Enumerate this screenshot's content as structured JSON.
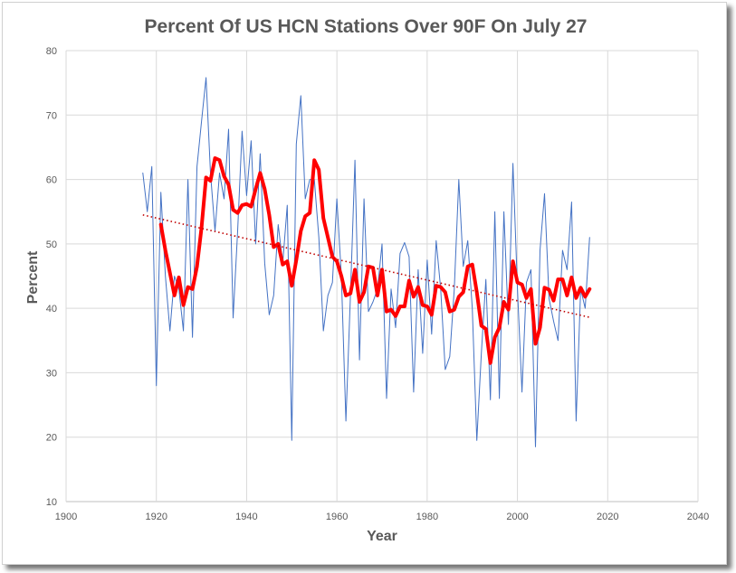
{
  "chart_data": {
    "type": "line",
    "title": "Percent Of US HCN Stations Over 90F On July 27",
    "xlabel": "Year",
    "ylabel": "Percent",
    "xlim": [
      1900,
      2040
    ],
    "ylim": [
      10,
      80
    ],
    "xticks": [
      1900,
      1920,
      1940,
      1960,
      1980,
      2000,
      2020,
      2040
    ],
    "yticks": [
      10,
      20,
      30,
      40,
      50,
      60,
      70,
      80
    ],
    "grid": true,
    "legend": "none",
    "series": [
      {
        "kind": "annual",
        "color": "#4472c4",
        "x": [
          1917,
          1918,
          1919,
          1920,
          1921,
          1922,
          1923,
          1924,
          1925,
          1926,
          1927,
          1928,
          1929,
          1930,
          1931,
          1932,
          1933,
          1934,
          1935,
          1936,
          1937,
          1938,
          1939,
          1940,
          1941,
          1942,
          1943,
          1944,
          1945,
          1946,
          1947,
          1948,
          1949,
          1950,
          1951,
          1952,
          1953,
          1954,
          1955,
          1956,
          1957,
          1958,
          1959,
          1960,
          1961,
          1962,
          1963,
          1964,
          1965,
          1966,
          1967,
          1968,
          1969,
          1970,
          1971,
          1972,
          1973,
          1974,
          1975,
          1976,
          1977,
          1978,
          1979,
          1980,
          1981,
          1982,
          1983,
          1984,
          1985,
          1986,
          1987,
          1988,
          1989,
          1990,
          1991,
          1992,
          1993,
          1994,
          1995,
          1996,
          1997,
          1998,
          1999,
          2000,
          2001,
          2002,
          2003,
          2004,
          2005,
          2006,
          2007,
          2008,
          2009,
          2010,
          2011,
          2012,
          2013,
          2014,
          2015,
          2016
        ],
        "values": [
          61.0,
          55.0,
          62.0,
          28.0,
          58.0,
          45.0,
          36.5,
          45.0,
          43.0,
          36.5,
          60.0,
          35.5,
          62.0,
          69.0,
          75.8,
          61.0,
          52.0,
          61.0,
          57.0,
          67.8,
          38.5,
          52.0,
          67.5,
          57.5,
          66.0,
          50.0,
          64.0,
          47.0,
          39.0,
          42.0,
          53.0,
          47.0,
          56.0,
          19.5,
          65.5,
          73.0,
          57.0,
          60.0,
          60.0,
          51.0,
          36.5,
          42.0,
          44.0,
          57.0,
          45.0,
          22.5,
          42.0,
          63.0,
          32.0,
          57.0,
          39.5,
          41.0,
          43.0,
          50.0,
          26.0,
          43.0,
          37.0,
          48.5,
          50.2,
          48.0,
          27.0,
          46.0,
          33.0,
          47.5,
          36.0,
          50.5,
          43.0,
          30.5,
          32.5,
          43.0,
          60.0,
          46.5,
          50.5,
          40.0,
          19.5,
          33.0,
          44.5,
          25.8,
          55.0,
          26.0,
          55.0,
          37.5,
          62.5,
          43.0,
          27.0,
          44.0,
          46.0,
          18.5,
          49.0,
          57.8,
          41.5,
          38.0,
          35.0,
          49.0,
          46.0,
          56.5,
          22.5,
          43.0,
          40.0,
          51.0
        ]
      },
      {
        "kind": "running-mean",
        "color": "#ff0000",
        "x": [
          1921,
          1922,
          1923,
          1924,
          1925,
          1926,
          1927,
          1928,
          1929,
          1930,
          1931,
          1932,
          1933,
          1934,
          1935,
          1936,
          1937,
          1938,
          1939,
          1940,
          1941,
          1942,
          1943,
          1944,
          1945,
          1946,
          1947,
          1948,
          1949,
          1950,
          1951,
          1952,
          1953,
          1954,
          1955,
          1956,
          1957,
          1958,
          1959,
          1960,
          1961,
          1962,
          1963,
          1964,
          1965,
          1966,
          1967,
          1968,
          1969,
          1970,
          1971,
          1972,
          1973,
          1974,
          1975,
          1976,
          1977,
          1978,
          1979,
          1980,
          1981,
          1982,
          1983,
          1984,
          1985,
          1986,
          1987,
          1988,
          1989,
          1990,
          1991,
          1992,
          1993,
          1994,
          1995,
          1996,
          1997,
          1998,
          1999,
          2000,
          2001,
          2002,
          2003,
          2004,
          2005,
          2006,
          2007,
          2008,
          2009,
          2010,
          2011,
          2012,
          2013,
          2014,
          2015,
          2016
        ],
        "values": [
          53.0,
          49.0,
          45.5,
          42.0,
          44.8,
          40.5,
          43.3,
          43.0,
          46.5,
          52.5,
          60.3,
          59.8,
          63.3,
          63.0,
          60.5,
          59.2,
          55.3,
          54.8,
          56.0,
          56.2,
          55.8,
          58.5,
          61.0,
          58.5,
          54.5,
          49.5,
          50.0,
          46.8,
          47.3,
          43.5,
          47.5,
          52.0,
          54.3,
          54.8,
          63.0,
          61.5,
          54.0,
          51.0,
          48.0,
          47.3,
          45.0,
          42.0,
          42.3,
          46.0,
          41.0,
          42.5,
          46.5,
          46.3,
          42.0,
          46.0,
          39.5,
          39.8,
          38.8,
          40.3,
          40.3,
          44.3,
          41.8,
          43.3,
          40.5,
          40.3,
          39.0,
          43.5,
          43.3,
          42.5,
          39.5,
          39.8,
          41.8,
          42.5,
          46.5,
          46.8,
          42.5,
          37.3,
          36.8,
          31.5,
          35.5,
          37.0,
          41.0,
          39.8,
          47.3,
          44.0,
          43.7,
          41.6,
          43.0,
          34.5,
          37.0,
          43.2,
          42.9,
          41.2,
          44.5,
          44.5,
          42.0,
          44.8,
          41.6,
          43.2,
          41.8,
          43.0
        ]
      },
      {
        "kind": "linear-trend",
        "color": "#c00000",
        "style": "dotted",
        "x": [
          1917,
          2016
        ],
        "values": [
          54.5,
          38.6
        ]
      }
    ]
  }
}
